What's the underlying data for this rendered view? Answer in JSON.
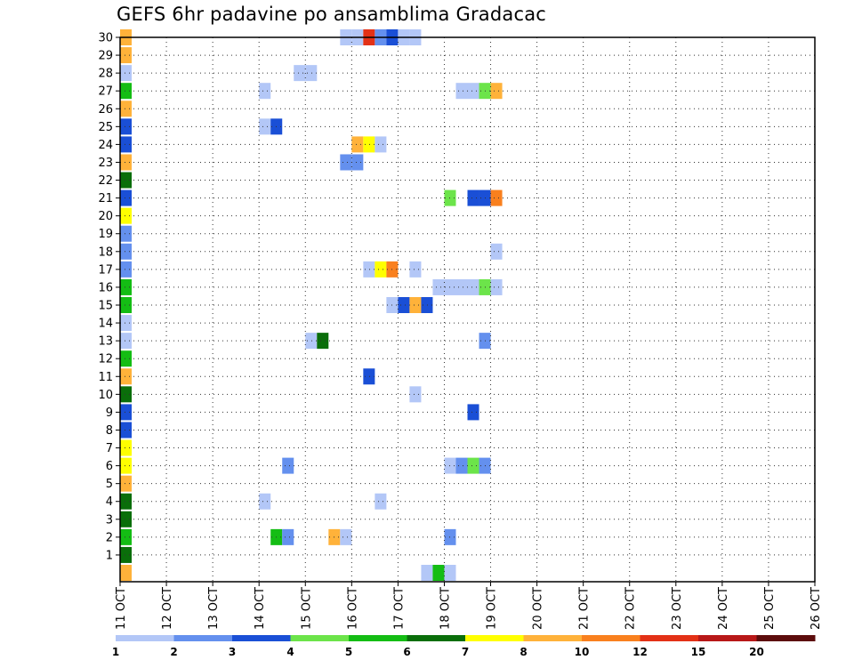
{
  "chart_data": {
    "type": "heatmap",
    "title": "GEFS 6hr padavine po ansamblima Gradacac",
    "x_tick_labels": [
      "11 OCT",
      "12 OCT",
      "13 OCT",
      "14 OCT",
      "15 OCT",
      "16 OCT",
      "17 OCT",
      "18 OCT",
      "19 OCT",
      "20 OCT",
      "21 OCT",
      "22 OCT",
      "23 OCT",
      "24 OCT",
      "25 OCT",
      "26 OCT"
    ],
    "x_range_days": [
      0,
      15
    ],
    "y_tick_labels": [
      "1",
      "2",
      "3",
      "4",
      "5",
      "6",
      "7",
      "8",
      "9",
      "10",
      "11",
      "12",
      "13",
      "14",
      "15",
      "16",
      "17",
      "18",
      "19",
      "20",
      "21",
      "22",
      "23",
      "24",
      "25",
      "26",
      "27",
      "28",
      "29",
      "30"
    ],
    "y_range": [
      0,
      30
    ],
    "grid": "dotted",
    "colorbar": {
      "labels": [
        "1",
        "2",
        "3",
        "4",
        "5",
        "6",
        "7",
        "8",
        "10",
        "12",
        "15",
        "20"
      ],
      "colors": [
        "#b3c7f7",
        "#6490ee",
        "#1a4fd6",
        "#6ce44a",
        "#14bd14",
        "#0a6e0a",
        "#ffff00",
        "#ffb23a",
        "#f9801e",
        "#e33116",
        "#b81818",
        "#5c0c0c"
      ]
    },
    "cells": [
      {
        "member": 0,
        "step": 0,
        "level": 8
      },
      {
        "member": 0,
        "step": 26,
        "level": 1
      },
      {
        "member": 0,
        "step": 27,
        "level": 5
      },
      {
        "member": 0,
        "step": 28,
        "level": 1
      },
      {
        "member": 1,
        "step": 0,
        "level": 6
      },
      {
        "member": 2,
        "step": 0,
        "level": 5
      },
      {
        "member": 2,
        "step": 13,
        "level": 5
      },
      {
        "member": 2,
        "step": 14,
        "level": 2
      },
      {
        "member": 2,
        "step": 18,
        "level": 8
      },
      {
        "member": 2,
        "step": 19,
        "level": 1
      },
      {
        "member": 2,
        "step": 28,
        "level": 2
      },
      {
        "member": 3,
        "step": 0,
        "level": 6
      },
      {
        "member": 4,
        "step": 0,
        "level": 6
      },
      {
        "member": 4,
        "step": 12,
        "level": 1
      },
      {
        "member": 4,
        "step": 22,
        "level": 1
      },
      {
        "member": 5,
        "step": 0,
        "level": 8
      },
      {
        "member": 6,
        "step": 0,
        "level": 7
      },
      {
        "member": 6,
        "step": 14,
        "level": 2
      },
      {
        "member": 6,
        "step": 28,
        "level": 1
      },
      {
        "member": 6,
        "step": 29,
        "level": 2
      },
      {
        "member": 6,
        "step": 30,
        "level": 4
      },
      {
        "member": 6,
        "step": 31,
        "level": 2
      },
      {
        "member": 7,
        "step": 0,
        "level": 7
      },
      {
        "member": 8,
        "step": 0,
        "level": 3
      },
      {
        "member": 9,
        "step": 0,
        "level": 3
      },
      {
        "member": 9,
        "step": 30,
        "level": 3
      },
      {
        "member": 10,
        "step": 0,
        "level": 6
      },
      {
        "member": 10,
        "step": 25,
        "level": 1
      },
      {
        "member": 11,
        "step": 0,
        "level": 8
      },
      {
        "member": 11,
        "step": 21,
        "level": 3
      },
      {
        "member": 12,
        "step": 0,
        "level": 5
      },
      {
        "member": 13,
        "step": 0,
        "level": 1
      },
      {
        "member": 13,
        "step": 16,
        "level": 1
      },
      {
        "member": 13,
        "step": 17,
        "level": 6
      },
      {
        "member": 13,
        "step": 31,
        "level": 2
      },
      {
        "member": 14,
        "step": 0,
        "level": 1
      },
      {
        "member": 15,
        "step": 0,
        "level": 5
      },
      {
        "member": 15,
        "step": 23,
        "level": 1
      },
      {
        "member": 15,
        "step": 24,
        "level": 3
      },
      {
        "member": 15,
        "step": 25,
        "level": 8
      },
      {
        "member": 15,
        "step": 26,
        "level": 3
      },
      {
        "member": 16,
        "step": 0,
        "level": 5
      },
      {
        "member": 16,
        "step": 27,
        "level": 1
      },
      {
        "member": 16,
        "step": 28,
        "level": 1
      },
      {
        "member": 16,
        "step": 29,
        "level": 1
      },
      {
        "member": 16,
        "step": 30,
        "level": 1
      },
      {
        "member": 16,
        "step": 31,
        "level": 4
      },
      {
        "member": 16,
        "step": 32,
        "level": 1
      },
      {
        "member": 17,
        "step": 0,
        "level": 2
      },
      {
        "member": 17,
        "step": 21,
        "level": 1
      },
      {
        "member": 17,
        "step": 22,
        "level": 7
      },
      {
        "member": 17,
        "step": 23,
        "level": 9
      },
      {
        "member": 17,
        "step": 25,
        "level": 1
      },
      {
        "member": 18,
        "step": 0,
        "level": 2
      },
      {
        "member": 18,
        "step": 32,
        "level": 1
      },
      {
        "member": 19,
        "step": 0,
        "level": 2
      },
      {
        "member": 20,
        "step": 0,
        "level": 7
      },
      {
        "member": 21,
        "step": 0,
        "level": 3
      },
      {
        "member": 21,
        "step": 28,
        "level": 4
      },
      {
        "member": 21,
        "step": 30,
        "level": 3
      },
      {
        "member": 21,
        "step": 31,
        "level": 3
      },
      {
        "member": 21,
        "step": 32,
        "level": 9
      },
      {
        "member": 22,
        "step": 0,
        "level": 6
      },
      {
        "member": 23,
        "step": 0,
        "level": 8
      },
      {
        "member": 23,
        "step": 19,
        "level": 2
      },
      {
        "member": 23,
        "step": 20,
        "level": 2
      },
      {
        "member": 24,
        "step": 0,
        "level": 3
      },
      {
        "member": 24,
        "step": 20,
        "level": 8
      },
      {
        "member": 24,
        "step": 21,
        "level": 7
      },
      {
        "member": 24,
        "step": 22,
        "level": 1
      },
      {
        "member": 25,
        "step": 0,
        "level": 3
      },
      {
        "member": 25,
        "step": 12,
        "level": 1
      },
      {
        "member": 25,
        "step": 13,
        "level": 3
      },
      {
        "member": 26,
        "step": 0,
        "level": 8
      },
      {
        "member": 27,
        "step": 0,
        "level": 5
      },
      {
        "member": 27,
        "step": 12,
        "level": 1
      },
      {
        "member": 27,
        "step": 29,
        "level": 1
      },
      {
        "member": 27,
        "step": 30,
        "level": 1
      },
      {
        "member": 27,
        "step": 31,
        "level": 4
      },
      {
        "member": 27,
        "step": 32,
        "level": 8
      },
      {
        "member": 28,
        "step": 0,
        "level": 1
      },
      {
        "member": 28,
        "step": 15,
        "level": 1
      },
      {
        "member": 28,
        "step": 16,
        "level": 1
      },
      {
        "member": 29,
        "step": 0,
        "level": 8
      },
      {
        "member": 30,
        "step": 0,
        "level": 8
      },
      {
        "member": 30,
        "step": 19,
        "level": 1
      },
      {
        "member": 30,
        "step": 20,
        "level": 1
      },
      {
        "member": 30,
        "step": 21,
        "level": 10
      },
      {
        "member": 30,
        "step": 22,
        "level": 2
      },
      {
        "member": 30,
        "step": 23,
        "level": 3
      },
      {
        "member": 30,
        "step": 24,
        "level": 1
      },
      {
        "member": 30,
        "step": 25,
        "level": 1
      }
    ]
  }
}
